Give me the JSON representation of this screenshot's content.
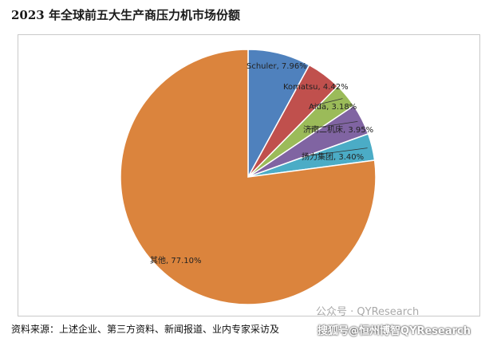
{
  "title": "2023 年全球前五大生产商压力机市场份额",
  "source": "资料来源：上述企业、第三方资料、新闻报道、业内专家采访及",
  "watermark": "公众号 · QYResearch",
  "watermark_overlay": "搜狐号@恒州博智QYResearch",
  "chart_data": {
    "type": "pie",
    "title": "2023 年全球前五大生产商压力机市场份额",
    "categories": [
      "Schuler",
      "Komatsu",
      "Aida",
      "济南二机床",
      "扬力集团",
      "其他"
    ],
    "values": [
      7.96,
      4.42,
      3.18,
      3.95,
      3.4,
      77.1
    ],
    "labels": [
      "Schuler, 7.96%",
      "Komatsu, 4.42%",
      "Aida, 3.18%",
      "济南二机床, 3.95%",
      "扬力集团, 3.40%",
      "其他, 77.10%"
    ],
    "colors": [
      "#4f81bd",
      "#c0504d",
      "#9bbb59",
      "#8064a2",
      "#4bacc6",
      "#db843d"
    ],
    "start_angle": "12 o'clock",
    "direction": "clockwise",
    "legend": "none"
  }
}
